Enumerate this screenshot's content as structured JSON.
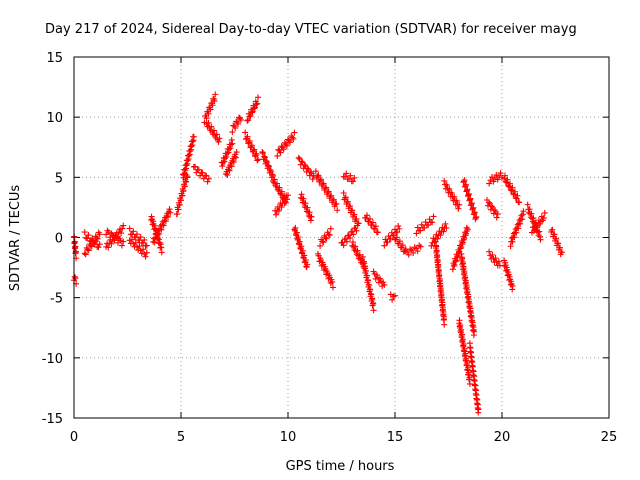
{
  "chart_data": {
    "type": "scatter",
    "title": "Day 217 of 2024, Sidereal Day-to-day VTEC variation (SDTVAR) for receiver mayg",
    "xlabel": "GPS time / hours",
    "ylabel": "SDTVAR / TECUs",
    "xlim": [
      0,
      25
    ],
    "ylim": [
      -15,
      15
    ],
    "xticks": [
      0,
      5,
      10,
      15,
      20,
      25
    ],
    "yticks": [
      -15,
      -10,
      -5,
      0,
      5,
      10,
      15
    ],
    "grid": true,
    "marker": "+",
    "color": "#ff0000",
    "segments": [
      {
        "x": [
          0.0,
          0.1
        ],
        "y": [
          0.0,
          -1.5
        ]
      },
      {
        "x": [
          0.0,
          0.1
        ],
        "y": [
          -3.3,
          -3.6
        ]
      },
      {
        "x": [
          0.5,
          1.2
        ],
        "y": [
          -1.3,
          0.3
        ]
      },
      {
        "x": [
          0.5,
          1.2
        ],
        "y": [
          0.2,
          -0.8
        ]
      },
      {
        "x": [
          1.5,
          2.3
        ],
        "y": [
          -0.8,
          0.8
        ]
      },
      {
        "x": [
          1.5,
          2.3
        ],
        "y": [
          0.5,
          -0.5
        ]
      },
      {
        "x": [
          2.6,
          3.4
        ],
        "y": [
          -0.2,
          -1.5
        ]
      },
      {
        "x": [
          2.6,
          3.4
        ],
        "y": [
          0.5,
          -0.6
        ]
      },
      {
        "x": [
          3.7,
          4.5
        ],
        "y": [
          -0.4,
          2.3
        ]
      },
      {
        "x": [
          3.6,
          4.1
        ],
        "y": [
          1.7,
          -1.0
        ]
      },
      {
        "x": [
          4.8,
          5.3
        ],
        "y": [
          2.0,
          5.2
        ]
      },
      {
        "x": [
          5.1,
          5.6
        ],
        "y": [
          5.0,
          8.4
        ]
      },
      {
        "x": [
          5.6,
          6.3
        ],
        "y": [
          5.8,
          4.8
        ]
      },
      {
        "x": [
          6.1,
          6.6
        ],
        "y": [
          9.8,
          11.7
        ]
      },
      {
        "x": [
          6.2,
          6.8
        ],
        "y": [
          9.5,
          8.0
        ]
      },
      {
        "x": [
          6.9,
          7.4
        ],
        "y": [
          6.0,
          8.0
        ]
      },
      {
        "x": [
          7.1,
          7.6
        ],
        "y": [
          5.2,
          7.0
        ]
      },
      {
        "x": [
          7.4,
          7.8
        ],
        "y": [
          9.0,
          10.0
        ]
      },
      {
        "x": [
          8.1,
          8.6
        ],
        "y": [
          9.8,
          11.4
        ]
      },
      {
        "x": [
          8.0,
          8.6
        ],
        "y": [
          8.5,
          6.5
        ]
      },
      {
        "x": [
          8.8,
          9.3
        ],
        "y": [
          7.0,
          5.0
        ]
      },
      {
        "x": [
          9.5,
          10.3
        ],
        "y": [
          7.0,
          8.5
        ]
      },
      {
        "x": [
          9.3,
          9.9
        ],
        "y": [
          4.8,
          3.0
        ]
      },
      {
        "x": [
          9.4,
          10.0
        ],
        "y": [
          2.0,
          3.5
        ]
      },
      {
        "x": [
          10.5,
          11.2
        ],
        "y": [
          6.5,
          5.0
        ]
      },
      {
        "x": [
          10.6,
          11.1
        ],
        "y": [
          3.5,
          1.5
        ]
      },
      {
        "x": [
          10.3,
          10.9
        ],
        "y": [
          0.8,
          -2.5
        ]
      },
      {
        "x": [
          11.3,
          12.3
        ],
        "y": [
          5.3,
          2.5
        ]
      },
      {
        "x": [
          11.4,
          12.1
        ],
        "y": [
          -1.5,
          -3.9
        ]
      },
      {
        "x": [
          11.5,
          12.0
        ],
        "y": [
          -0.5,
          0.5
        ]
      },
      {
        "x": [
          12.6,
          13.1
        ],
        "y": [
          5.2,
          4.7
        ]
      },
      {
        "x": [
          12.6,
          13.3
        ],
        "y": [
          3.5,
          1.0
        ]
      },
      {
        "x": [
          12.5,
          13.2
        ],
        "y": [
          -0.6,
          0.8
        ]
      },
      {
        "x": [
          13.0,
          13.6
        ],
        "y": [
          -0.5,
          -2.5
        ]
      },
      {
        "x": [
          13.6,
          14.2
        ],
        "y": [
          1.8,
          0.5
        ]
      },
      {
        "x": [
          13.5,
          14.0
        ],
        "y": [
          -1.8,
          -5.8
        ]
      },
      {
        "x": [
          14.0,
          14.5
        ],
        "y": [
          -3.0,
          -4.0
        ]
      },
      {
        "x": [
          14.5,
          15.2
        ],
        "y": [
          -0.5,
          0.8
        ]
      },
      {
        "x": [
          15.0,
          15.5
        ],
        "y": [
          0.0,
          -1.2
        ]
      },
      {
        "x": [
          14.8,
          15.0
        ],
        "y": [
          -4.9,
          -5.0
        ]
      },
      {
        "x": [
          15.5,
          16.2
        ],
        "y": [
          -1.3,
          -0.8
        ]
      },
      {
        "x": [
          16.0,
          16.8
        ],
        "y": [
          0.5,
          1.5
        ]
      },
      {
        "x": [
          16.7,
          17.4
        ],
        "y": [
          -0.5,
          1.0
        ]
      },
      {
        "x": [
          16.9,
          17.3
        ],
        "y": [
          -0.5,
          -7.0
        ]
      },
      {
        "x": [
          17.3,
          18.0
        ],
        "y": [
          4.5,
          2.5
        ]
      },
      {
        "x": [
          17.7,
          18.4
        ],
        "y": [
          -2.5,
          0.8
        ]
      },
      {
        "x": [
          18.2,
          18.8
        ],
        "y": [
          4.8,
          1.5
        ]
      },
      {
        "x": [
          18.1,
          18.7
        ],
        "y": [
          -1.5,
          -8.0
        ]
      },
      {
        "x": [
          18.5,
          18.9
        ],
        "y": [
          -9.0,
          -14.5
        ]
      },
      {
        "x": [
          18.0,
          18.5
        ],
        "y": [
          -7.0,
          -12.0
        ]
      },
      {
        "x": [
          19.4,
          20.0
        ],
        "y": [
          4.7,
          5.2
        ]
      },
      {
        "x": [
          19.3,
          19.8
        ],
        "y": [
          3.0,
          1.8
        ]
      },
      {
        "x": [
          19.4,
          19.9
        ],
        "y": [
          -1.4,
          -2.3
        ]
      },
      {
        "x": [
          20.1,
          20.8
        ],
        "y": [
          5.0,
          3.0
        ]
      },
      {
        "x": [
          20.4,
          21.0
        ],
        "y": [
          -0.5,
          2.0
        ]
      },
      {
        "x": [
          20.1,
          20.5
        ],
        "y": [
          -2.0,
          -4.2
        ]
      },
      {
        "x": [
          21.2,
          21.8
        ],
        "y": [
          2.5,
          0.0
        ]
      },
      {
        "x": [
          21.4,
          22.0
        ],
        "y": [
          0.5,
          1.8
        ]
      },
      {
        "x": [
          22.3,
          22.8
        ],
        "y": [
          0.7,
          -1.4
        ]
      }
    ]
  }
}
